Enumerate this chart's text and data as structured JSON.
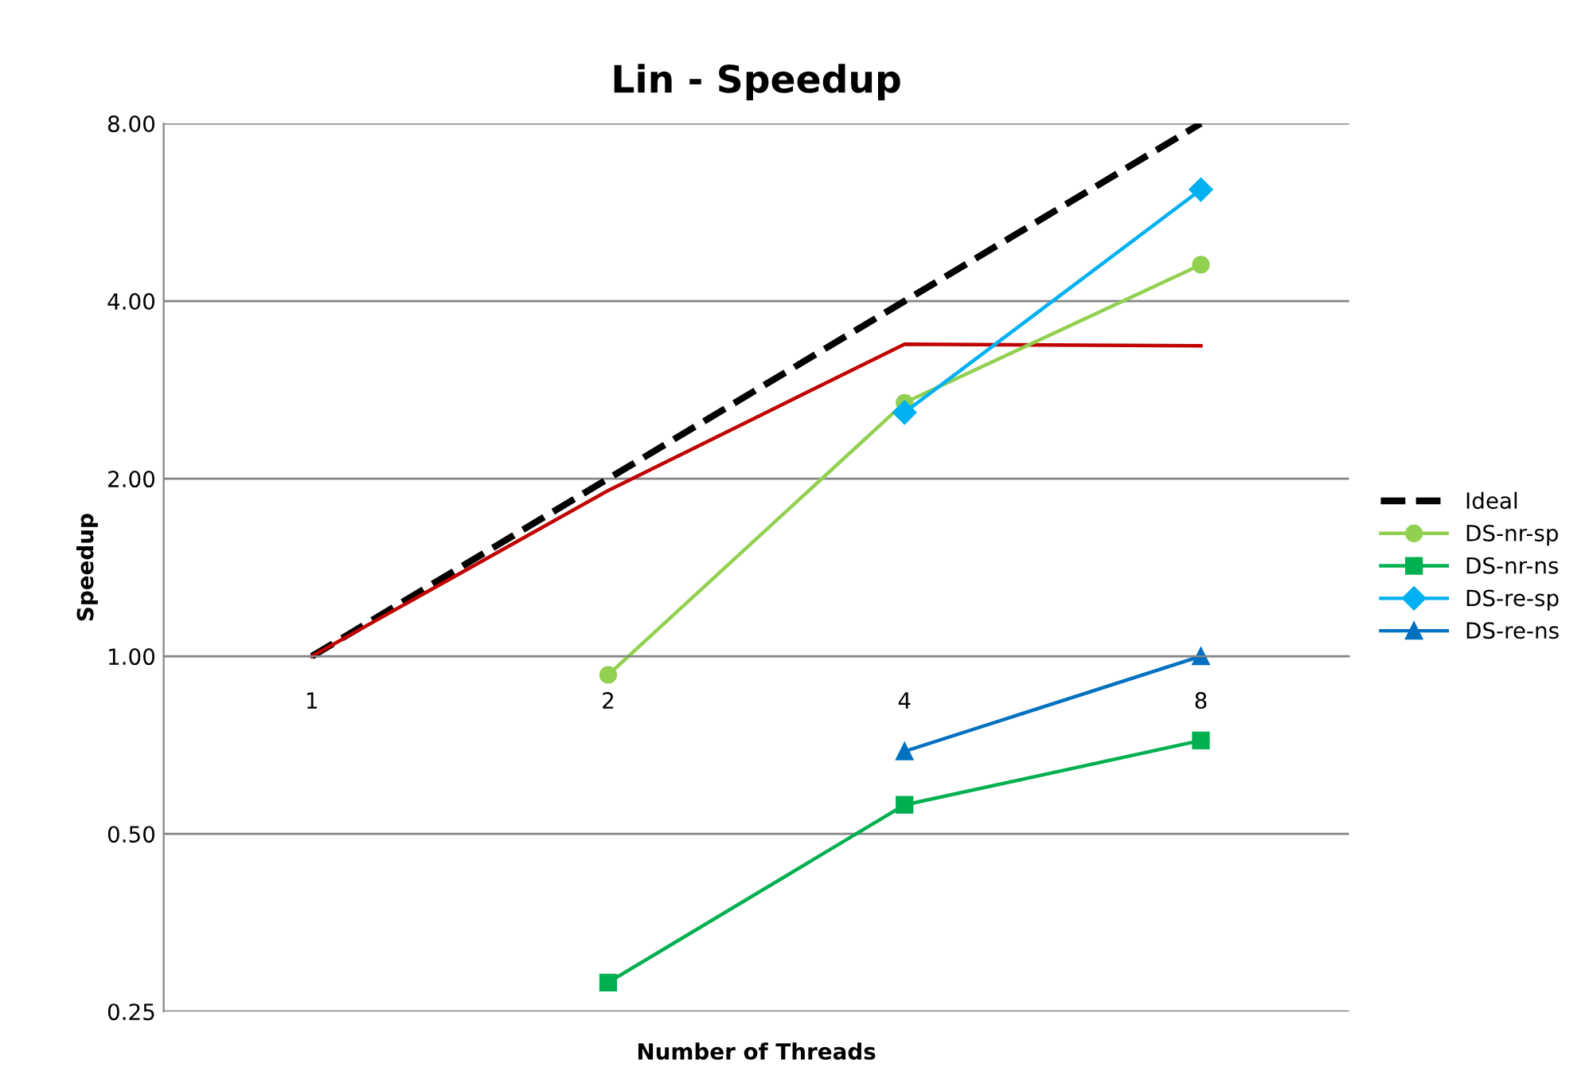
{
  "chart_data": {
    "type": "line",
    "title": "Lin - Speedup",
    "xlabel": "Number of Threads",
    "ylabel": "Speedup",
    "categories": [
      "1",
      "2",
      "4",
      "8"
    ],
    "series": [
      {
        "name": "Ideal",
        "color": "#000000",
        "line_style": "dashed",
        "marker": "none",
        "values": [
          1,
          2,
          4,
          8
        ]
      },
      {
        "color": "#c00000",
        "line_style": "solid",
        "marker": "none",
        "values": [
          1,
          1.91,
          3.38,
          3.36
        ]
      },
      {
        "name": "DS-nr-sp",
        "color": "#92d050",
        "line_style": "solid",
        "marker": "circle",
        "values": [
          null,
          0.93,
          2.69,
          4.61
        ]
      },
      {
        "name": "DS-nr-ns",
        "color": "#00b050",
        "line_style": "solid",
        "marker": "square",
        "values": [
          null,
          0.28,
          0.56,
          0.72
        ]
      },
      {
        "name": "DS-re-sp",
        "color": "#00b0f0",
        "line_style": "solid",
        "marker": "diamond",
        "values": [
          null,
          null,
          2.59,
          6.18
        ]
      },
      {
        "name": "DS-re-ns",
        "color": "#0070c0",
        "line_style": "solid",
        "marker": "triangle",
        "values": [
          null,
          null,
          0.69,
          1.0
        ]
      }
    ],
    "log": "y",
    "ylim": [
      0.25,
      8
    ],
    "yticks": [
      {
        "value": 0.25,
        "label": "0.25"
      },
      {
        "value": 0.5,
        "label": "0.50"
      },
      {
        "value": 1,
        "label": "1.00"
      },
      {
        "value": 2,
        "label": "2.00"
      },
      {
        "value": 4,
        "label": "4.00"
      },
      {
        "value": 8,
        "label": "8.00"
      }
    ],
    "grid": "y",
    "legend": "right"
  }
}
